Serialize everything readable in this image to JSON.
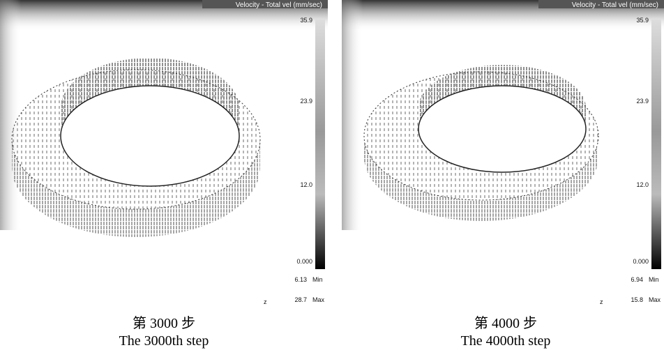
{
  "panels": [
    {
      "header": "Velocity - Total vel (mm/sec)",
      "scale_labels": [
        "35.9",
        "23.9",
        "12.0",
        "0.000"
      ],
      "min_value": "6.13",
      "min_label": "Min",
      "max_value": "28.7",
      "max_label": "Max",
      "axis_label": "z",
      "caption_cn": "第 3000 步",
      "caption_en": "The 3000th step"
    },
    {
      "header": "Velocity - Total vel (mm/sec)",
      "scale_labels": [
        "35.9",
        "23.9",
        "12.0",
        "0.000"
      ],
      "min_value": "6.94",
      "min_label": "Min",
      "max_value": "15.8",
      "max_label": "Max",
      "axis_label": "z",
      "caption_cn": "第 4000 步",
      "caption_en": "The 4000th step"
    }
  ]
}
